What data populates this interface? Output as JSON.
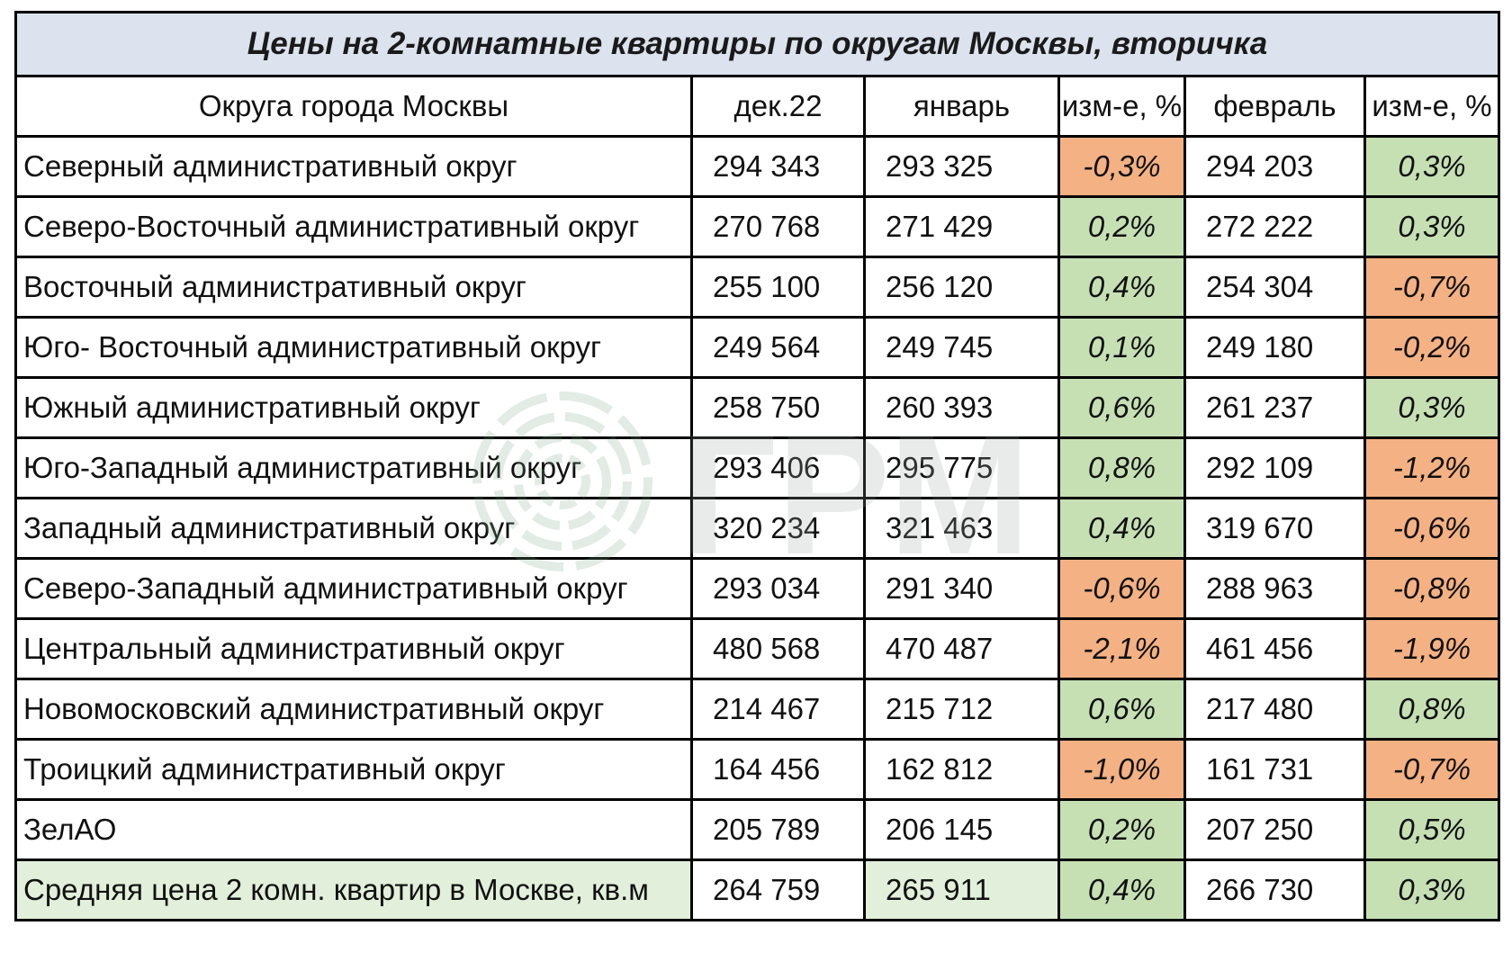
{
  "title": "Цены на 2-комнатные квартиры по округам Москвы, вторичка",
  "headers": {
    "district": "Округа города Москвы",
    "dec": "дек.22",
    "jan": "январь",
    "change1": "изм-е, %",
    "feb": "февраль",
    "change2": "изм-е, %"
  },
  "watermark_text": "ГРМ",
  "colors": {
    "positive": "#c6e0b4",
    "negative": "#f4b183",
    "title_bg": "#dce3ee",
    "average_bg": "#e2efda"
  },
  "rows": [
    {
      "name": "Северный административный округ",
      "dec": "294 343",
      "jan": "293 325",
      "ch1": "-0,3%",
      "ch1_sign": "neg",
      "feb": "294 203",
      "ch2": "0,3%",
      "ch2_sign": "pos"
    },
    {
      "name": "Северо-Восточный административный округ",
      "dec": "270 768",
      "jan": "271 429",
      "ch1": "0,2%",
      "ch1_sign": "pos",
      "feb": "272 222",
      "ch2": "0,3%",
      "ch2_sign": "pos"
    },
    {
      "name": "Восточный административный округ",
      "dec": "255 100",
      "jan": "256 120",
      "ch1": "0,4%",
      "ch1_sign": "pos",
      "feb": "254 304",
      "ch2": "-0,7%",
      "ch2_sign": "neg"
    },
    {
      "name": "Юго- Восточный административный округ",
      "dec": "249 564",
      "jan": "249 745",
      "ch1": "0,1%",
      "ch1_sign": "pos",
      "feb": "249 180",
      "ch2": "-0,2%",
      "ch2_sign": "neg"
    },
    {
      "name": "Южный административный округ",
      "dec": "258 750",
      "jan": "260 393",
      "ch1": "0,6%",
      "ch1_sign": "pos",
      "feb": "261 237",
      "ch2": "0,3%",
      "ch2_sign": "pos"
    },
    {
      "name": "Юго-Западный административный округ",
      "dec": "293 406",
      "jan": "295 775",
      "ch1": "0,8%",
      "ch1_sign": "pos",
      "feb": "292 109",
      "ch2": "-1,2%",
      "ch2_sign": "neg"
    },
    {
      "name": "Западный административный округ",
      "dec": "320 234",
      "jan": "321 463",
      "ch1": "0,4%",
      "ch1_sign": "pos",
      "feb": "319 670",
      "ch2": "-0,6%",
      "ch2_sign": "neg"
    },
    {
      "name": "Северо-Западный административный округ",
      "dec": "293 034",
      "jan": "291 340",
      "ch1": "-0,6%",
      "ch1_sign": "neg",
      "feb": "288 963",
      "ch2": "-0,8%",
      "ch2_sign": "neg"
    },
    {
      "name": "Центральный административный округ",
      "dec": "480 568",
      "jan": "470 487",
      "ch1": "-2,1%",
      "ch1_sign": "neg",
      "feb": "461 456",
      "ch2": "-1,9%",
      "ch2_sign": "neg"
    },
    {
      "name": "Новомосковский административный округ",
      "dec": "214 467",
      "jan": "215 712",
      "ch1": "0,6%",
      "ch1_sign": "pos",
      "feb": "217 480",
      "ch2": "0,8%",
      "ch2_sign": "pos"
    },
    {
      "name": "Троицкий административный округ",
      "dec": "164 456",
      "jan": "162 812",
      "ch1": "-1,0%",
      "ch1_sign": "neg",
      "feb": "161 731",
      "ch2": "-0,7%",
      "ch2_sign": "neg"
    },
    {
      "name": "ЗелАО",
      "dec": "205 789",
      "jan": "206 145",
      "ch1": "0,2%",
      "ch1_sign": "pos",
      "feb": "207 250",
      "ch2": "0,5%",
      "ch2_sign": "pos"
    }
  ],
  "average": {
    "name": "Средняя цена 2 комн. квартир в Москве, кв.м",
    "dec": "264 759",
    "jan": "265 911",
    "ch1": "0,4%",
    "ch1_sign": "pos",
    "feb": "266 730",
    "ch2": "0,3%",
    "ch2_sign": "pos"
  }
}
